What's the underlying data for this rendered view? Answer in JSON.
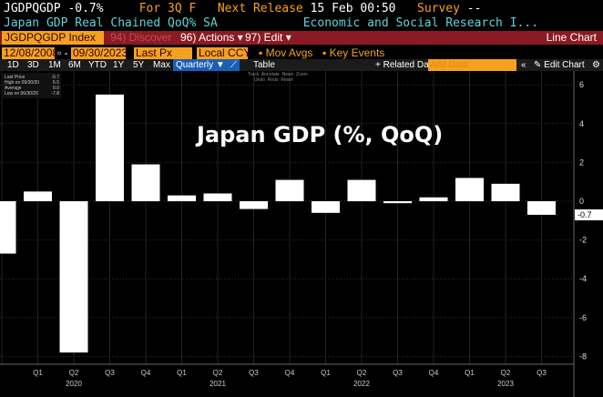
{
  "header": {
    "ticker": "JGDPQGDP",
    "last": "-0.7%",
    "period": "For 3Q F",
    "next_label": "Next Release",
    "next_date": "15 Feb 00:50",
    "survey_label": "Survey",
    "survey_val": "--",
    "desc": "Japan GDP Real Chained QoQ% SA",
    "source": "Economic and Social Research I..."
  },
  "toolbar": {
    "security": "JGDPQGDP Index",
    "discover": "94) Discover",
    "actions": "96) Actions ▾",
    "edit": "97) Edit ▾",
    "chart_type": "Line Chart"
  },
  "controls": {
    "start": "12/08/2008",
    "end": "09/30/2023",
    "field": "Last Px",
    "ccy": "Local CCY",
    "mov_avgs": "Mov Avgs",
    "key_events": "Key Events"
  },
  "ranges": [
    "1D",
    "3D",
    "1M",
    "6M",
    "YTD",
    "1Y",
    "5Y",
    "Max"
  ],
  "frequency": "Quarterly ▼",
  "table": "Table",
  "related": "+ Related Dat",
  "add_data_placeholder": "Add Data",
  "edit_chart": "Edit Chart",
  "tools": "Track  Annotate  News  Zoom\n     Undo  Redo  Reset",
  "legend": [
    {
      "label": "Last Price",
      "value": "-0.7"
    },
    {
      "label": "High on 09/30/20",
      "value": "5.5"
    },
    {
      "label": "Average",
      "value": "0.0"
    },
    {
      "label": "Low on 06/30/20",
      "value": "-7.8"
    }
  ],
  "chart_data": {
    "type": "bar",
    "title": "Japan GDP (%, QoQ)",
    "categories": [
      "Q4 2019",
      "Q1 2020",
      "Q2 2020",
      "Q3 2020",
      "Q4 2020",
      "Q1 2021",
      "Q2 2021",
      "Q3 2021",
      "Q4 2021",
      "Q1 2022",
      "Q2 2022",
      "Q3 2022",
      "Q4 2022",
      "Q1 2023",
      "Q2 2023",
      "Q3 2023"
    ],
    "values": [
      -2.7,
      0.5,
      -7.8,
      5.5,
      1.9,
      0.3,
      0.4,
      -0.4,
      1.1,
      -0.6,
      1.1,
      -0.1,
      0.2,
      1.2,
      0.9,
      -0.7
    ],
    "quarter_labels": [
      "",
      "Q1",
      "Q2",
      "Q3",
      "Q4",
      "Q1",
      "Q2",
      "Q3",
      "Q4",
      "Q1",
      "Q2",
      "Q3",
      "Q4",
      "Q1",
      "Q2",
      "Q3"
    ],
    "year_labels": [
      {
        "index": 2,
        "text": "2020"
      },
      {
        "index": 6,
        "text": "2021"
      },
      {
        "index": 10,
        "text": "2022"
      },
      {
        "index": 14,
        "text": "2023"
      }
    ],
    "yticks": [
      6,
      4,
      2,
      0,
      -2,
      -4,
      -6,
      -8
    ],
    "ylim": [
      -9.5,
      7
    ],
    "last_value_label": "-0.7",
    "bar_color": "#ffffff"
  }
}
